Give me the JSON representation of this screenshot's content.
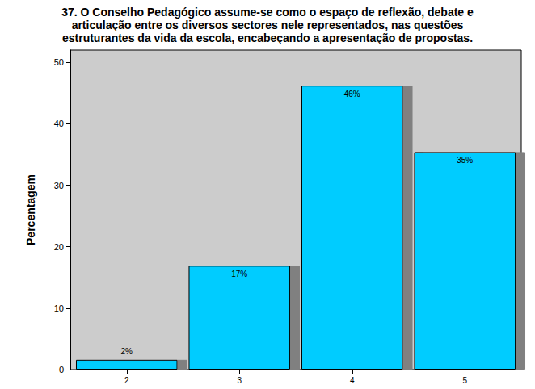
{
  "chart_data": {
    "type": "bar",
    "title": "37. O Conselho Pedagógico assume-se como o espaço de reflexão, debate e\narticulação entre os diversos sectores nele representados, nas questões\nestruturantes da vida da escola, encabeçando a apresentação de propostas.",
    "y_label": "Percentagem",
    "categories": [
      "2",
      "3",
      "4",
      "5"
    ],
    "values": [
      1.6,
      16.9,
      46.2,
      35.4
    ],
    "value_labels": [
      "2%",
      "17%",
      "46%",
      "35%"
    ],
    "color": "#00ccff",
    "ylim": [
      0,
      52
    ],
    "yticks": [
      0,
      10,
      20,
      30,
      40,
      50
    ],
    "grid": false,
    "data_labels": true
  }
}
